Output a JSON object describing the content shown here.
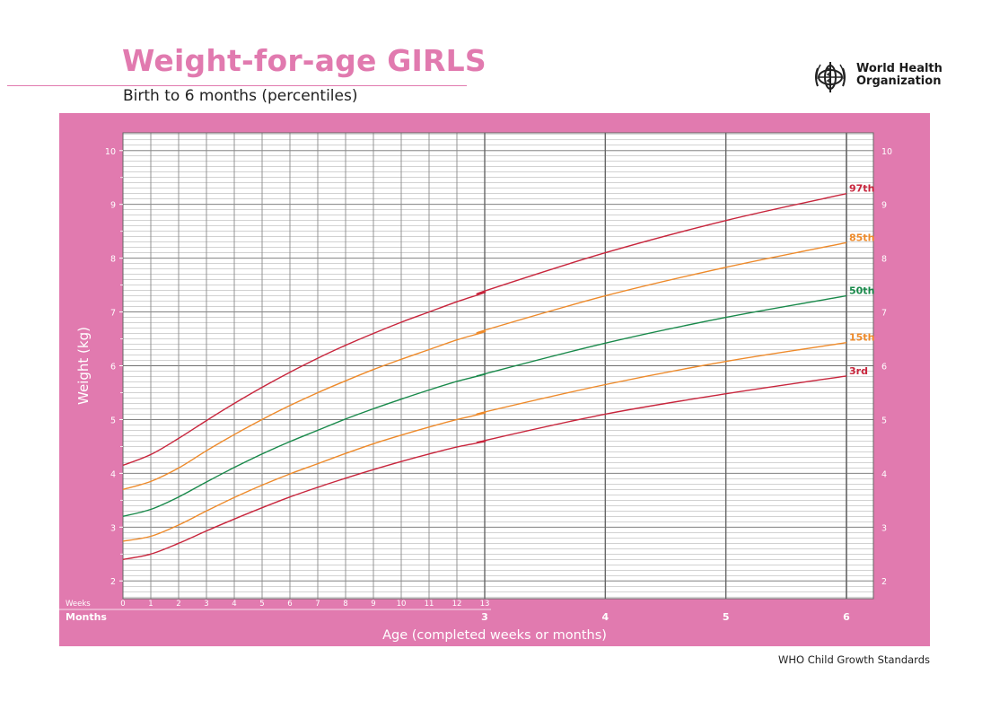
{
  "header": {
    "title": "Weight-for-age GIRLS",
    "subtitle": "Birth to 6 months (percentiles)",
    "org_line1": "World Health",
    "org_line2": "Organization",
    "logo_icon": "who-emblem-icon"
  },
  "footer": {
    "text": "WHO Child Growth Standards"
  },
  "colors": {
    "brand_pink": "#e17aaf",
    "p97": "#c8253c",
    "p85": "#ee8a2a",
    "p50": "#18894a",
    "p15": "#ee8a2a",
    "p3": "#c8253c"
  },
  "chart_data": {
    "type": "line",
    "title": "Weight-for-age GIRLS",
    "subtitle": "Birth to 6 months (percentiles)",
    "ylabel": "Weight (kg)",
    "xlabel": "Age (completed weeks or months)",
    "ylim": [
      1.67,
      10.33
    ],
    "yticks": [
      2,
      3,
      4,
      5,
      6,
      7,
      8,
      9,
      10
    ],
    "weeks_row_label": "Weeks",
    "months_row_label": "Months",
    "week_ticks": [
      0,
      1,
      2,
      3,
      4,
      5,
      6,
      7,
      8,
      9,
      10,
      11,
      12,
      13
    ],
    "month_ticks": [
      3,
      4,
      5,
      6
    ],
    "grid": true,
    "series": [
      {
        "name": "97th",
        "color": "#c8253c",
        "weeks": [
          [
            0,
            4.15
          ],
          [
            1,
            4.35
          ],
          [
            2,
            4.65
          ],
          [
            3,
            4.98
          ],
          [
            4,
            5.3
          ],
          [
            5,
            5.6
          ],
          [
            6,
            5.88
          ],
          [
            7,
            6.14
          ],
          [
            8,
            6.38
          ],
          [
            9,
            6.6
          ],
          [
            10,
            6.81
          ],
          [
            11,
            7.0
          ],
          [
            12,
            7.19
          ],
          [
            13,
            7.36
          ]
        ],
        "months": [
          [
            3,
            7.39
          ],
          [
            4,
            8.1
          ],
          [
            5,
            8.7
          ],
          [
            6,
            9.2
          ]
        ]
      },
      {
        "name": "85th",
        "color": "#ee8a2a",
        "weeks": [
          [
            0,
            3.7
          ],
          [
            1,
            3.85
          ],
          [
            2,
            4.1
          ],
          [
            3,
            4.42
          ],
          [
            4,
            4.72
          ],
          [
            5,
            5.0
          ],
          [
            6,
            5.26
          ],
          [
            7,
            5.5
          ],
          [
            8,
            5.72
          ],
          [
            9,
            5.93
          ],
          [
            10,
            6.12
          ],
          [
            11,
            6.3
          ],
          [
            12,
            6.48
          ],
          [
            13,
            6.63
          ]
        ],
        "months": [
          [
            3,
            6.66
          ],
          [
            4,
            7.3
          ],
          [
            5,
            7.83
          ],
          [
            6,
            8.29
          ]
        ]
      },
      {
        "name": "50th",
        "color": "#18894a",
        "weeks": [
          [
            0,
            3.2
          ],
          [
            1,
            3.33
          ],
          [
            2,
            3.56
          ],
          [
            3,
            3.84
          ],
          [
            4,
            4.11
          ],
          [
            5,
            4.36
          ],
          [
            6,
            4.59
          ],
          [
            7,
            4.8
          ],
          [
            8,
            5.01
          ],
          [
            9,
            5.2
          ],
          [
            10,
            5.38
          ],
          [
            11,
            5.55
          ],
          [
            12,
            5.71
          ],
          [
            13,
            5.84
          ]
        ],
        "months": [
          [
            3,
            5.85
          ],
          [
            4,
            6.42
          ],
          [
            5,
            6.9
          ],
          [
            6,
            7.3
          ]
        ]
      },
      {
        "name": "15th",
        "color": "#ee8a2a",
        "weeks": [
          [
            0,
            2.74
          ],
          [
            1,
            2.83
          ],
          [
            2,
            3.04
          ],
          [
            3,
            3.3
          ],
          [
            4,
            3.55
          ],
          [
            5,
            3.78
          ],
          [
            6,
            3.99
          ],
          [
            7,
            4.18
          ],
          [
            8,
            4.37
          ],
          [
            9,
            4.55
          ],
          [
            10,
            4.71
          ],
          [
            11,
            4.86
          ],
          [
            12,
            5.0
          ],
          [
            13,
            5.12
          ]
        ],
        "months": [
          [
            3,
            5.14
          ],
          [
            4,
            5.65
          ],
          [
            5,
            6.08
          ],
          [
            6,
            6.43
          ]
        ]
      },
      {
        "name": "3rd",
        "color": "#c8253c",
        "weeks": [
          [
            0,
            2.4
          ],
          [
            1,
            2.5
          ],
          [
            2,
            2.7
          ],
          [
            3,
            2.93
          ],
          [
            4,
            3.15
          ],
          [
            5,
            3.36
          ],
          [
            6,
            3.56
          ],
          [
            7,
            3.74
          ],
          [
            8,
            3.91
          ],
          [
            9,
            4.07
          ],
          [
            10,
            4.22
          ],
          [
            11,
            4.36
          ],
          [
            12,
            4.49
          ],
          [
            13,
            4.59
          ]
        ],
        "months": [
          [
            3,
            4.61
          ],
          [
            4,
            5.1
          ],
          [
            5,
            5.48
          ],
          [
            6,
            5.81
          ]
        ]
      }
    ]
  }
}
